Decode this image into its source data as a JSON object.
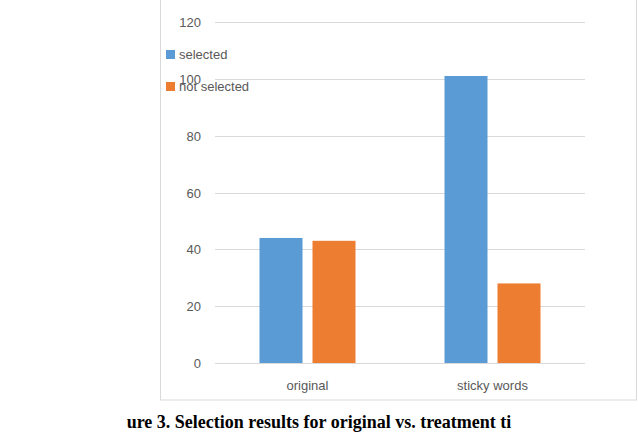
{
  "chart_data": {
    "type": "bar",
    "title": "ure 3. Selection results for original vs. treatment ti",
    "categories": [
      "original",
      "sticky words"
    ],
    "series": [
      {
        "name": "selected",
        "color": "#5b9bd5",
        "values": [
          44,
          101
        ]
      },
      {
        "name": "not selected",
        "color": "#ed7d31",
        "values": [
          43,
          28
        ]
      }
    ],
    "ylim": [
      0,
      120
    ],
    "yticks": [
      0,
      20,
      40,
      60,
      80,
      100,
      120
    ],
    "grid": true,
    "legend": "top-left"
  }
}
